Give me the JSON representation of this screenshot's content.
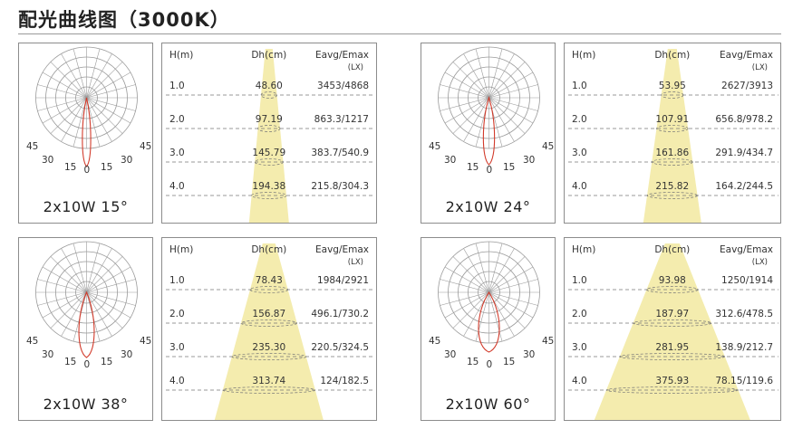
{
  "title": "配光曲线图（3000K）",
  "colors": {
    "cone": "#f4ecae",
    "curve": "#d23a2a",
    "grid": "#9a9a9a",
    "dash": "#777777"
  },
  "headers": {
    "h": "H(m)",
    "dh": "Dh(cm)",
    "e": "Eavg/Emax",
    "unit": "(LX)"
  },
  "panels": [
    {
      "label": "2x10W 15°",
      "angle_labels": [
        "45",
        "30",
        "15",
        "0",
        "15",
        "30",
        "45"
      ],
      "rows": [
        {
          "h": "1.0",
          "dh": "48.60",
          "e": "3453/4868"
        },
        {
          "h": "2.0",
          "dh": "97.19",
          "e": "863.3/1217"
        },
        {
          "h": "3.0",
          "dh": "145.79",
          "e": "383.7/540.9"
        },
        {
          "h": "4.0",
          "dh": "194.38",
          "e": "215.8/304.3"
        }
      ]
    },
    {
      "label": "2x10W 24°",
      "angle_labels": [
        "45",
        "30",
        "15",
        "0",
        "15",
        "30",
        "45"
      ],
      "rows": [
        {
          "h": "1.0",
          "dh": "53.95",
          "e": "2627/3913"
        },
        {
          "h": "2.0",
          "dh": "107.91",
          "e": "656.8/978.2"
        },
        {
          "h": "3.0",
          "dh": "161.86",
          "e": "291.9/434.7"
        },
        {
          "h": "4.0",
          "dh": "215.82",
          "e": "164.2/244.5"
        }
      ]
    },
    {
      "label": "2x10W 38°",
      "angle_labels": [
        "45",
        "30",
        "15",
        "0",
        "15",
        "30",
        "45"
      ],
      "rows": [
        {
          "h": "1.0",
          "dh": "78.43",
          "e": "1984/2921"
        },
        {
          "h": "2.0",
          "dh": "156.87",
          "e": "496.1/730.2"
        },
        {
          "h": "3.0",
          "dh": "235.30",
          "e": "220.5/324.5"
        },
        {
          "h": "4.0",
          "dh": "313.74",
          "e": "124/182.5"
        }
      ]
    },
    {
      "label": "2x10W 60°",
      "angle_labels": [
        "45",
        "30",
        "15",
        "0",
        "15",
        "30",
        "45"
      ],
      "rows": [
        {
          "h": "1.0",
          "dh": "93.98",
          "e": "1250/1914"
        },
        {
          "h": "2.0",
          "dh": "187.97",
          "e": "312.6/478.5"
        },
        {
          "h": "3.0",
          "dh": "281.95",
          "e": "138.9/212.7"
        },
        {
          "h": "4.0",
          "dh": "375.93",
          "e": "78.15/119.6"
        }
      ]
    }
  ]
}
